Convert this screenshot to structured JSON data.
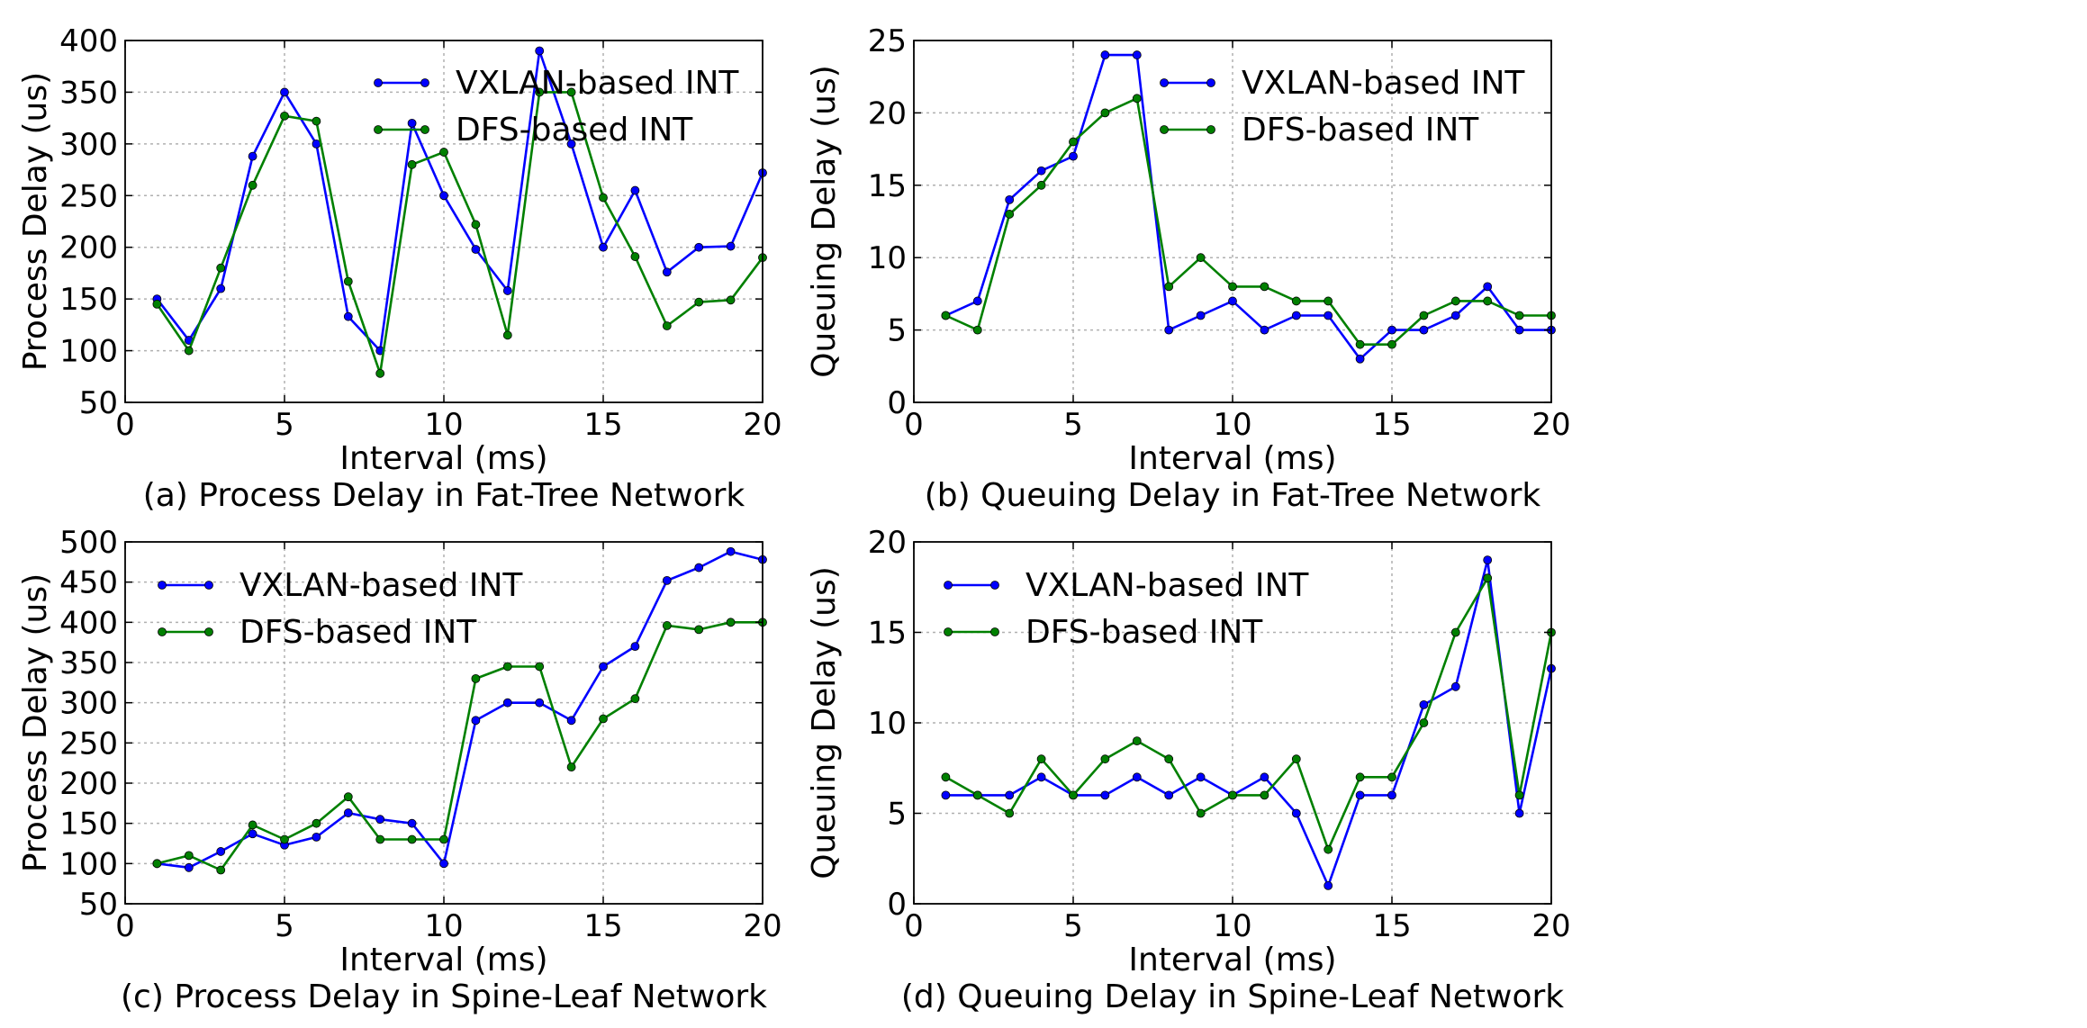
{
  "colors": {
    "vxlan": "#0000ff",
    "dfs": "#008000",
    "grid": "#b0b0b0",
    "axes": "#000000"
  },
  "chart_data": [
    {
      "type": "line",
      "caption": "(a) Process Delay in Fat-Tree Network",
      "xlabel": "Interval (ms)",
      "ylabel": "Process Delay (us)",
      "xlim": [
        0,
        20
      ],
      "ylim": [
        50,
        400
      ],
      "xticks": [
        0,
        5,
        10,
        15,
        20
      ],
      "yticks": [
        50,
        100,
        150,
        200,
        250,
        300,
        350,
        400
      ],
      "grid": true,
      "legend_position": "top-center",
      "x": [
        1,
        2,
        3,
        4,
        5,
        6,
        7,
        8,
        9,
        10,
        11,
        12,
        13,
        14,
        15,
        16,
        17,
        18,
        19,
        20
      ],
      "series": [
        {
          "name": "VXLAN-based INT",
          "color": "#0000ff",
          "values": [
            150,
            110,
            160,
            288,
            350,
            300,
            133,
            100,
            320,
            250,
            198,
            158,
            390,
            300,
            200,
            255,
            176,
            200,
            201,
            272
          ]
        },
        {
          "name": "DFS-based INT",
          "color": "#008000",
          "values": [
            145,
            100,
            180,
            260,
            327,
            322,
            167,
            78,
            280,
            292,
            222,
            115,
            350,
            350,
            248,
            191,
            124,
            147,
            149,
            190
          ]
        }
      ]
    },
    {
      "type": "line",
      "caption": "(b) Queuing Delay in Fat-Tree Network",
      "xlabel": "Interval (ms)",
      "ylabel": "Queuing Delay (us)",
      "xlim": [
        0,
        20
      ],
      "ylim": [
        0,
        25
      ],
      "xticks": [
        0,
        5,
        10,
        15,
        20
      ],
      "yticks": [
        0,
        5,
        10,
        15,
        20,
        25
      ],
      "grid": true,
      "legend_position": "top-right",
      "x": [
        1,
        2,
        3,
        4,
        5,
        6,
        7,
        8,
        9,
        10,
        11,
        12,
        13,
        14,
        15,
        16,
        17,
        18,
        19,
        20
      ],
      "series": [
        {
          "name": "VXLAN-based INT",
          "color": "#0000ff",
          "values": [
            6,
            7,
            14,
            16,
            17,
            24,
            24,
            5,
            6,
            7,
            5,
            6,
            6,
            3,
            5,
            5,
            6,
            8,
            5,
            5
          ]
        },
        {
          "name": "DFS-based INT",
          "color": "#008000",
          "values": [
            6,
            5,
            13,
            15,
            18,
            20,
            21,
            8,
            10,
            8,
            8,
            7,
            7,
            4,
            4,
            6,
            7,
            7,
            6,
            6
          ]
        }
      ]
    },
    {
      "type": "line",
      "caption": "(c) Process Delay in Spine-Leaf Network",
      "xlabel": "Interval (ms)",
      "ylabel": "Process Delay (us)",
      "xlim": [
        0,
        20
      ],
      "ylim": [
        50,
        500
      ],
      "xticks": [
        0,
        5,
        10,
        15,
        20
      ],
      "yticks": [
        50,
        100,
        150,
        200,
        250,
        300,
        350,
        400,
        450,
        500
      ],
      "grid": true,
      "legend_position": "top-left",
      "x": [
        1,
        2,
        3,
        4,
        5,
        6,
        7,
        8,
        9,
        10,
        11,
        12,
        13,
        14,
        15,
        16,
        17,
        18,
        19,
        20
      ],
      "series": [
        {
          "name": "VXLAN-based INT",
          "color": "#0000ff",
          "values": [
            100,
            95,
            115,
            137,
            123,
            133,
            163,
            155,
            150,
            100,
            278,
            300,
            300,
            278,
            345,
            370,
            452,
            468,
            488,
            478
          ]
        },
        {
          "name": "DFS-based INT",
          "color": "#008000",
          "values": [
            100,
            110,
            92,
            148,
            130,
            150,
            183,
            130,
            130,
            130,
            330,
            345,
            345,
            220,
            280,
            305,
            396,
            391,
            400,
            400
          ]
        }
      ]
    },
    {
      "type": "line",
      "caption": "(d) Queuing Delay in Spine-Leaf Network",
      "xlabel": "Interval (ms)",
      "ylabel": "Queuing Delay (us)",
      "xlim": [
        0,
        20
      ],
      "ylim": [
        0,
        20
      ],
      "xticks": [
        0,
        5,
        10,
        15,
        20
      ],
      "yticks": [
        0,
        5,
        10,
        15,
        20
      ],
      "grid": true,
      "legend_position": "top-left",
      "x": [
        1,
        2,
        3,
        4,
        5,
        6,
        7,
        8,
        9,
        10,
        11,
        12,
        13,
        14,
        15,
        16,
        17,
        18,
        19,
        20
      ],
      "series": [
        {
          "name": "VXLAN-based INT",
          "color": "#0000ff",
          "values": [
            6,
            6,
            6,
            7,
            6,
            6,
            7,
            6,
            7,
            6,
            7,
            5,
            1,
            6,
            6,
            11,
            12,
            19,
            5,
            13
          ]
        },
        {
          "name": "DFS-based INT",
          "color": "#008000",
          "values": [
            7,
            6,
            5,
            8,
            6,
            8,
            9,
            8,
            5,
            6,
            6,
            8,
            3,
            7,
            7,
            10,
            15,
            18,
            6,
            15
          ]
        }
      ]
    }
  ]
}
